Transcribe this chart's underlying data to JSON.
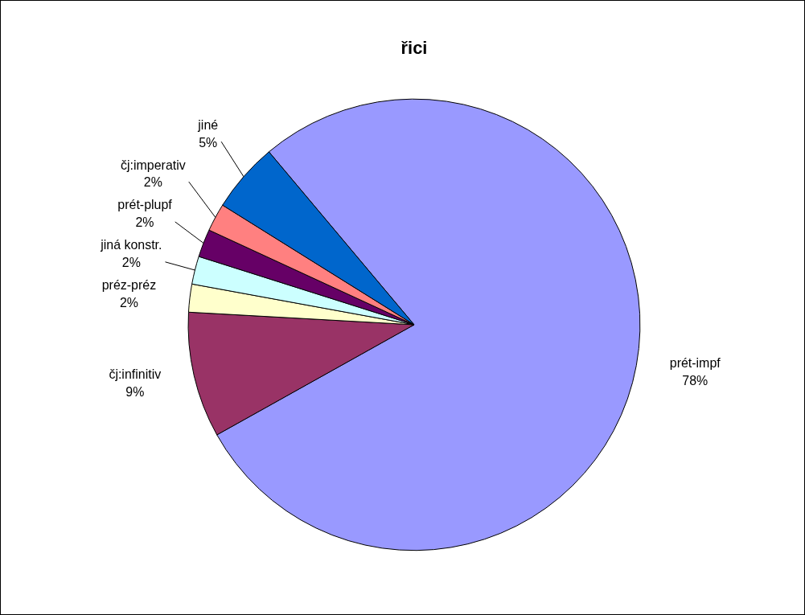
{
  "chart_data": {
    "type": "pie",
    "title": "řici",
    "categories": [
      "prét-impf",
      "čj:infinitiv",
      "préz-préz",
      "jiná konstr.",
      "prét-plupf",
      "čj:imperativ",
      "jiné"
    ],
    "values": [
      78,
      9,
      2,
      2,
      2,
      2,
      5
    ],
    "value_labels": [
      "78%",
      "9%",
      "2%",
      "2%",
      "2%",
      "2%",
      "5%"
    ],
    "colors": [
      "#9999ff",
      "#993366",
      "#ffffcc",
      "#ccffff",
      "#660066",
      "#ff8080",
      "#0066cc"
    ],
    "legend": false
  }
}
